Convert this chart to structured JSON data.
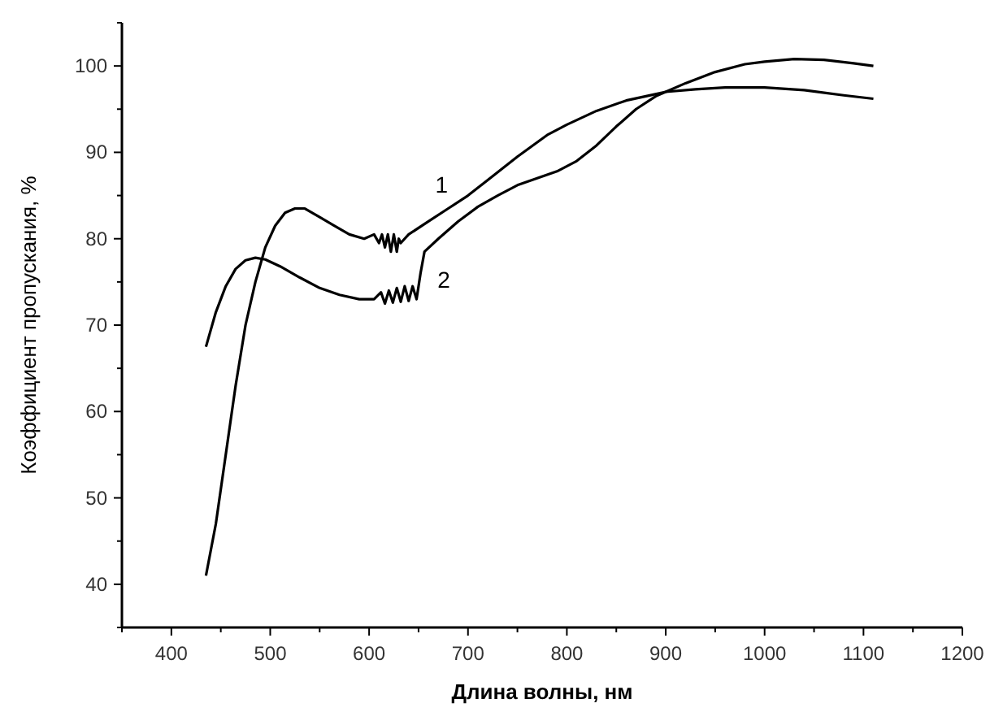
{
  "chart_data": {
    "type": "line",
    "xlabel": "Длина волны, нм",
    "ylabel": "Коэффициент пропускания, %",
    "xlim": [
      350,
      1200
    ],
    "ylim": [
      35,
      105
    ],
    "xticks": [
      {
        "value": 350,
        "label": null
      },
      400,
      {
        "value": 450,
        "label": null
      },
      500,
      {
        "value": 550,
        "label": null
      },
      600,
      {
        "value": 650,
        "label": null
      },
      700,
      {
        "value": 750,
        "label": null
      },
      800,
      {
        "value": 850,
        "label": null
      },
      900,
      {
        "value": 950,
        "label": null
      },
      1000,
      {
        "value": 1050,
        "label": null
      },
      1100,
      {
        "value": 1150,
        "label": null
      },
      1200
    ],
    "yticks": [
      {
        "value": 35,
        "label": null
      },
      40,
      {
        "value": 45,
        "label": null
      },
      50,
      {
        "value": 55,
        "label": null
      },
      60,
      {
        "value": 65,
        "label": null
      },
      70,
      {
        "value": 75,
        "label": null
      },
      80,
      {
        "value": 85,
        "label": null
      },
      90,
      {
        "value": 95,
        "label": null
      },
      100,
      {
        "value": 105,
        "label": null
      }
    ],
    "grid": false,
    "marker": "none",
    "line_style": "solid",
    "legend": false,
    "series": [
      {
        "name": "1",
        "color": "#000000",
        "x": [
          435,
          445,
          455,
          465,
          475,
          485,
          495,
          505,
          515,
          525,
          535,
          550,
          565,
          580,
          595,
          605,
          610,
          613,
          616,
          619,
          622,
          625,
          628,
          630,
          632,
          640,
          660,
          680,
          700,
          720,
          750,
          780,
          800,
          830,
          860,
          880,
          900,
          920,
          950,
          980,
          1000,
          1030,
          1060,
          1090,
          1110
        ],
        "values": [
          41,
          47,
          55,
          63,
          70,
          75,
          79,
          81.5,
          83,
          83.5,
          83.5,
          82.5,
          81.5,
          80.5,
          80,
          80.5,
          79.5,
          80.5,
          79,
          80.5,
          78.5,
          80.5,
          78.5,
          80,
          79.5,
          80.5,
          82,
          83.5,
          85,
          86.8,
          89.5,
          92,
          93.2,
          94.8,
          96,
          96.5,
          97,
          98,
          99.3,
          100.2,
          100.5,
          100.8,
          100.7,
          100.3,
          100
        ]
      },
      {
        "name": "2",
        "color": "#000000",
        "x": [
          435,
          445,
          455,
          465,
          475,
          485,
          495,
          510,
          530,
          550,
          570,
          590,
          605,
          612,
          616,
          620,
          624,
          628,
          632,
          636,
          640,
          644,
          648,
          650,
          652,
          656,
          670,
          690,
          710,
          730,
          750,
          770,
          790,
          810,
          830,
          850,
          870,
          890,
          900,
          930,
          960,
          1000,
          1040,
          1080,
          1110
        ],
        "values": [
          67.5,
          71.5,
          74.5,
          76.5,
          77.5,
          77.8,
          77.6,
          76.8,
          75.5,
          74.3,
          73.5,
          73,
          73,
          73.8,
          72.5,
          74,
          72.6,
          74.3,
          72.7,
          74.5,
          72.8,
          74.5,
          73,
          74.5,
          76,
          78.5,
          80,
          82,
          83.7,
          85,
          86.2,
          87,
          87.8,
          89,
          90.8,
          93,
          95,
          96.5,
          97,
          97.3,
          97.5,
          97.5,
          97.2,
          96.6,
          96.2
        ]
      }
    ]
  }
}
